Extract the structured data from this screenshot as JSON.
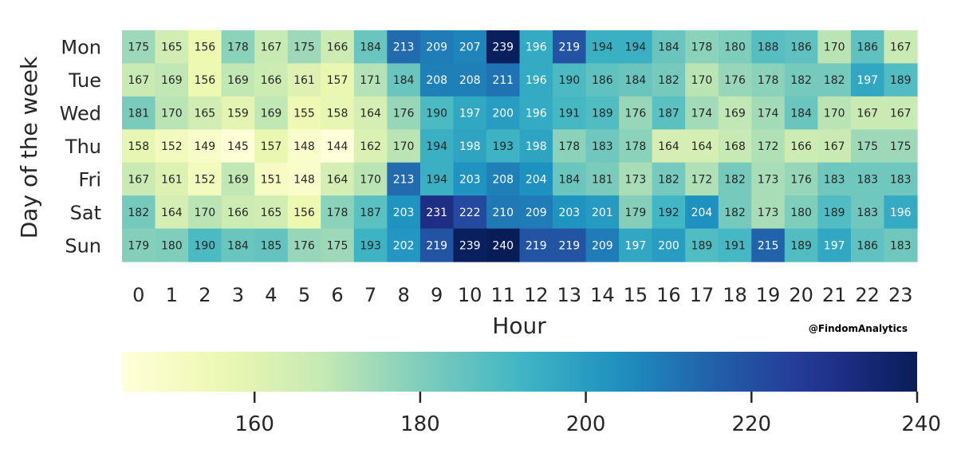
{
  "chart_data": {
    "type": "heatmap",
    "title": "",
    "xlabel": "Hour",
    "ylabel": "Day of the week",
    "x_categories": [
      "0",
      "1",
      "2",
      "3",
      "4",
      "5",
      "6",
      "7",
      "8",
      "9",
      "10",
      "11",
      "12",
      "13",
      "14",
      "15",
      "16",
      "17",
      "18",
      "19",
      "20",
      "21",
      "22",
      "23"
    ],
    "y_categories": [
      "Mon",
      "Tue",
      "Wed",
      "Thu",
      "Fri",
      "Sat",
      "Sun"
    ],
    "values": [
      [
        175,
        165,
        156,
        178,
        167,
        175,
        166,
        184,
        213,
        209,
        207,
        239,
        196,
        219,
        194,
        194,
        184,
        178,
        180,
        188,
        186,
        170,
        186,
        167
      ],
      [
        167,
        169,
        156,
        169,
        166,
        161,
        157,
        171,
        184,
        208,
        208,
        211,
        196,
        190,
        186,
        184,
        182,
        170,
        176,
        178,
        182,
        182,
        197,
        189
      ],
      [
        181,
        170,
        165,
        159,
        169,
        155,
        158,
        164,
        176,
        190,
        197,
        200,
        196,
        191,
        189,
        176,
        187,
        174,
        169,
        174,
        184,
        170,
        167,
        167
      ],
      [
        158,
        152,
        149,
        145,
        157,
        148,
        144,
        162,
        170,
        194,
        198,
        193,
        198,
        178,
        183,
        178,
        164,
        164,
        168,
        172,
        166,
        167,
        175,
        175
      ],
      [
        167,
        161,
        152,
        169,
        151,
        148,
        164,
        170,
        213,
        194,
        203,
        208,
        204,
        184,
        181,
        173,
        182,
        172,
        182,
        173,
        176,
        183,
        183,
        183
      ],
      [
        182,
        164,
        170,
        166,
        165,
        156,
        178,
        187,
        203,
        231,
        222,
        210,
        209,
        203,
        201,
        179,
        192,
        204,
        182,
        173,
        180,
        189,
        183,
        196
      ],
      [
        179,
        180,
        190,
        184,
        185,
        176,
        175,
        193,
        202,
        219,
        239,
        240,
        219,
        219,
        209,
        197,
        200,
        189,
        191,
        215,
        189,
        197,
        186,
        183
      ]
    ],
    "colorbar": {
      "colormap": "YlGnBu",
      "vmin": 144,
      "vmax": 240,
      "ticks": [
        "160",
        "180",
        "200",
        "220",
        "240"
      ],
      "orientation": "horizontal"
    },
    "watermark": "@FindomAnalytics",
    "grid": false,
    "legend": "none"
  }
}
